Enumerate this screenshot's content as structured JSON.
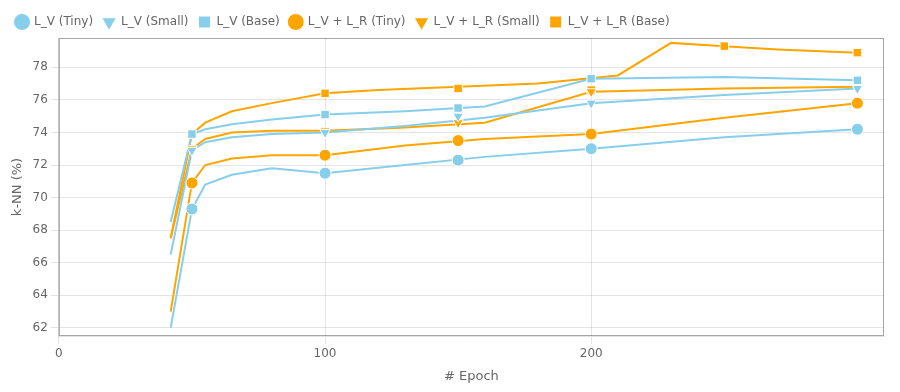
{
  "chart_data": {
    "type": "line",
    "xlabel": "# Epoch",
    "ylabel": "k-NN (%)",
    "xlim": [
      0,
      310
    ],
    "ylim": [
      61.5,
      79.8
    ],
    "xticks": [
      0,
      100,
      200
    ],
    "yticks": [
      62,
      64,
      66,
      68,
      70,
      72,
      74,
      76,
      78
    ],
    "grid": true,
    "legend": "upper left",
    "series": [
      {
        "name": "L_V (Tiny)",
        "color": "#87CEEB",
        "marker": "circle",
        "x": [
          50,
          100,
          150,
          200,
          300
        ],
        "values": [
          69.3,
          71.5,
          72.3,
          73.0,
          74.2
        ],
        "curve_x": [
          42,
          50,
          55,
          65,
          80,
          100,
          130,
          160,
          200,
          250,
          300
        ],
        "curve_values": [
          62.0,
          69.3,
          70.8,
          71.4,
          71.8,
          71.5,
          72.0,
          72.5,
          73.0,
          73.7,
          74.2
        ]
      },
      {
        "name": "L_V (Small)",
        "color": "#87CEEB",
        "marker": "triangle_down",
        "x": [
          50,
          100,
          150,
          200,
          300
        ],
        "values": [
          72.9,
          74.0,
          75.0,
          75.8,
          76.7
        ],
        "curve_x": [
          42,
          50,
          55,
          65,
          80,
          100,
          130,
          160,
          200,
          250,
          300
        ],
        "curve_values": [
          66.5,
          72.9,
          73.4,
          73.7,
          73.9,
          74.0,
          74.4,
          74.9,
          75.8,
          76.3,
          76.7
        ]
      },
      {
        "name": "L_V (Base)",
        "color": "#87CEEB",
        "marker": "square",
        "x": [
          50,
          100,
          150,
          200,
          300
        ],
        "values": [
          73.9,
          75.1,
          75.5,
          77.3,
          77.2
        ],
        "curve_x": [
          42,
          50,
          55,
          65,
          80,
          100,
          130,
          160,
          200,
          250,
          300
        ],
        "curve_values": [
          68.5,
          73.9,
          74.2,
          74.5,
          74.8,
          75.1,
          75.3,
          75.6,
          77.3,
          77.4,
          77.2
        ]
      },
      {
        "name": "L_V + L_R (Tiny)",
        "color": "#FFA500",
        "marker": "circle",
        "x": [
          50,
          100,
          150,
          200,
          300
        ],
        "values": [
          70.9,
          72.6,
          73.5,
          73.9,
          75.8
        ],
        "curve_x": [
          42,
          50,
          55,
          65,
          80,
          100,
          130,
          160,
          200,
          250,
          300
        ],
        "curve_values": [
          63.0,
          70.9,
          72.0,
          72.4,
          72.6,
          72.6,
          73.2,
          73.6,
          73.9,
          74.9,
          75.8
        ]
      },
      {
        "name": "L_V + L_R (Small)",
        "color": "#FFA500",
        "marker": "triangle_down",
        "x": [
          50,
          100,
          150,
          200,
          300
        ],
        "values": [
          73.0,
          74.1,
          74.6,
          76.5,
          76.8
        ],
        "curve_x": [
          42,
          50,
          55,
          65,
          80,
          100,
          130,
          160,
          200,
          250,
          300
        ],
        "curve_values": [
          67.5,
          73.0,
          73.6,
          74.0,
          74.1,
          74.1,
          74.3,
          74.6,
          76.5,
          76.7,
          76.8
        ]
      },
      {
        "name": "L_V + L_R (Base)",
        "color": "#FFA500",
        "marker": "square",
        "x": [
          50,
          100,
          150,
          200,
          250,
          300
        ],
        "values": [
          73.9,
          76.4,
          76.7,
          76.6,
          79.3,
          78.9
        ],
        "curve_x": [
          42,
          50,
          55,
          65,
          80,
          100,
          120,
          150,
          180,
          210,
          230,
          250,
          270,
          300
        ],
        "curve_values": [
          67.5,
          73.9,
          74.6,
          75.3,
          75.8,
          76.4,
          76.6,
          76.8,
          77.0,
          77.5,
          79.5,
          79.3,
          79.1,
          78.9
        ]
      }
    ]
  }
}
